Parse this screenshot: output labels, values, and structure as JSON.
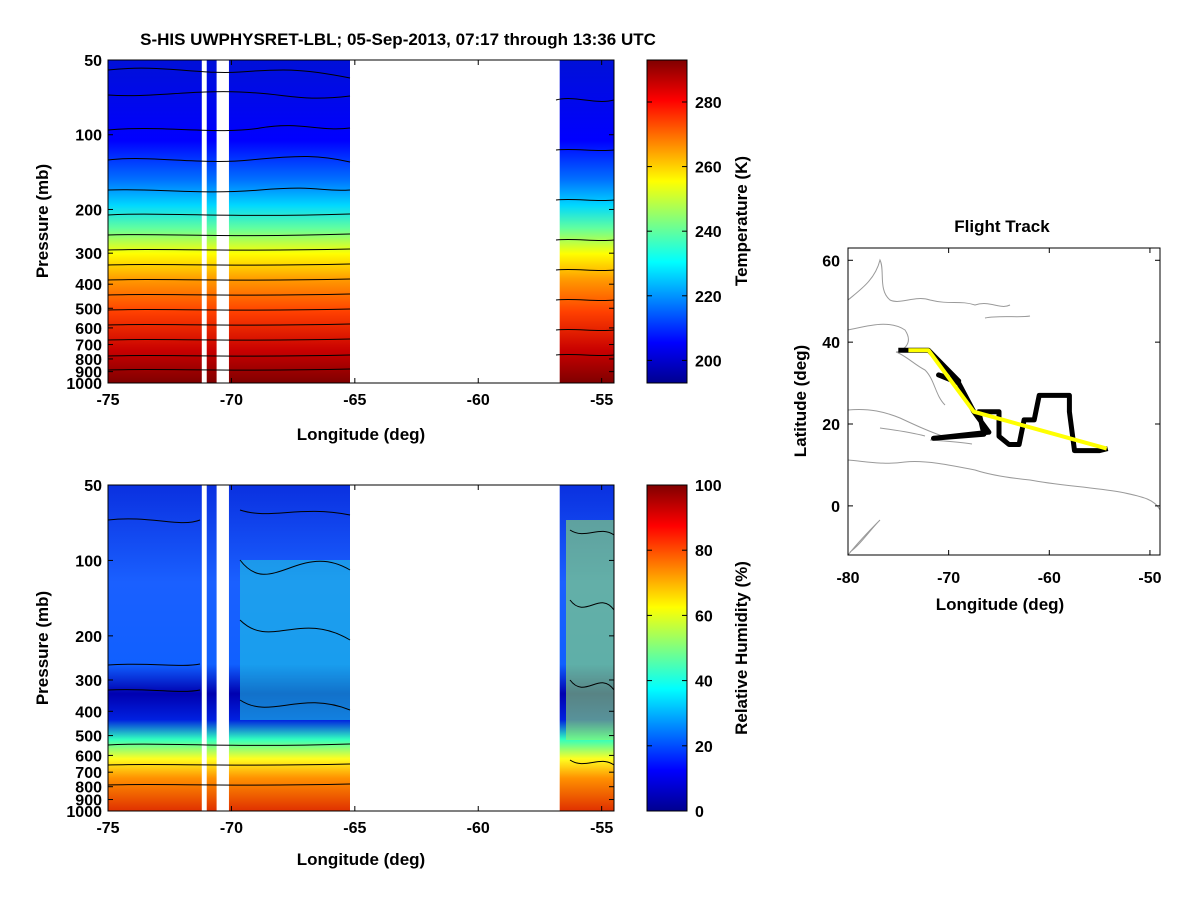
{
  "title": "S-HIS UWPHYSRET-LBL;   05-Sep-2013, 07:17 through 13:36 UTC",
  "chart_data": [
    {
      "type": "heatmap",
      "name": "temperature-section",
      "xlabel": "Longitude (deg)",
      "ylabel": "Pressure (mb)",
      "xlim": [
        -75,
        -54.5
      ],
      "ylim": [
        1000,
        50
      ],
      "yscale": "log",
      "xticks": [
        -75,
        -70,
        -65,
        -60,
        -55
      ],
      "xtick_labels": [
        "-75",
        "-70",
        "-65",
        "-60",
        "-55"
      ],
      "yticks": [
        50,
        100,
        200,
        300,
        400,
        500,
        600,
        700,
        800,
        900,
        1000
      ],
      "ytick_labels": [
        "50",
        "100",
        "200",
        "300",
        "400",
        "500",
        "600",
        "700",
        "800",
        "900",
        "1000"
      ],
      "colorbar": {
        "label": "Temperature (K)",
        "range": [
          193,
          293
        ],
        "ticks": [
          200,
          220,
          240,
          260,
          280
        ],
        "tick_labels": [
          "200",
          "220",
          "240",
          "260",
          "280"
        ]
      },
      "data_gaps_lon": [
        [
          -71.2,
          -71.0
        ],
        [
          -70.6,
          -70.1
        ],
        [
          -65.0,
          -57.1
        ],
        [
          -57.0,
          -56.7
        ]
      ]
    },
    {
      "type": "heatmap",
      "name": "humidity-section",
      "xlabel": "Longitude (deg)",
      "ylabel": "Pressure (mb)",
      "xlim": [
        -75,
        -54.5
      ],
      "ylim": [
        1000,
        50
      ],
      "yscale": "log",
      "xticks": [
        -75,
        -70,
        -65,
        -60,
        -55
      ],
      "xtick_labels": [
        "-75",
        "-70",
        "-65",
        "-60",
        "-55"
      ],
      "yticks": [
        50,
        100,
        200,
        300,
        400,
        500,
        600,
        700,
        800,
        900,
        1000
      ],
      "ytick_labels": [
        "50",
        "100",
        "200",
        "300",
        "400",
        "500",
        "600",
        "700",
        "800",
        "900",
        "1000"
      ],
      "colorbar": {
        "label": "Relative Humidity (%)",
        "range": [
          0,
          100
        ],
        "ticks": [
          0,
          20,
          40,
          60,
          80,
          100
        ],
        "tick_labels": [
          "0",
          "20",
          "40",
          "60",
          "80",
          "100"
        ]
      },
      "data_gaps_lon": [
        [
          -71.2,
          -71.0
        ],
        [
          -70.6,
          -70.1
        ],
        [
          -65.0,
          -57.1
        ],
        [
          -57.0,
          -56.7
        ]
      ]
    },
    {
      "type": "line",
      "name": "flight-track",
      "title": "Flight Track",
      "xlabel": "Longitude (deg)",
      "ylabel": "Latitude (deg)",
      "xlim": [
        -80,
        -49
      ],
      "ylim": [
        -12,
        63
      ],
      "xticks": [
        -80,
        -70,
        -60,
        -50
      ],
      "xtick_labels": [
        "-80",
        "-70",
        "-60",
        "-50"
      ],
      "yticks": [
        0,
        20,
        40,
        60
      ],
      "ytick_labels": [
        "0",
        "20",
        "40",
        "60"
      ],
      "series": [
        {
          "name": "full-track",
          "color": "#000000",
          "points": [
            [
              -75,
              38
            ],
            [
              -72,
              38
            ],
            [
              -69,
              30.5
            ],
            [
              -71,
              32
            ],
            [
              -69,
              30
            ],
            [
              -67.5,
              23
            ],
            [
              -66,
              18
            ],
            [
              -71.5,
              16.5
            ],
            [
              -66.5,
              17.5
            ],
            [
              -67,
              23
            ],
            [
              -65,
              23
            ],
            [
              -65,
              17
            ],
            [
              -64,
              15
            ],
            [
              -63,
              15
            ],
            [
              -62.5,
              21
            ],
            [
              -61.5,
              21
            ],
            [
              -61,
              27
            ],
            [
              -58,
              27
            ],
            [
              -58,
              23
            ],
            [
              -57.5,
              13.5
            ],
            [
              -55,
              13.5
            ],
            [
              -54.2,
              14
            ]
          ]
        },
        {
          "name": "retrieval-segment",
          "color": "#ffff00",
          "points": [
            [
              -74,
              38
            ],
            [
              -72,
              38
            ],
            [
              -67.5,
              23
            ],
            [
              -54.3,
              14
            ]
          ]
        }
      ]
    }
  ]
}
